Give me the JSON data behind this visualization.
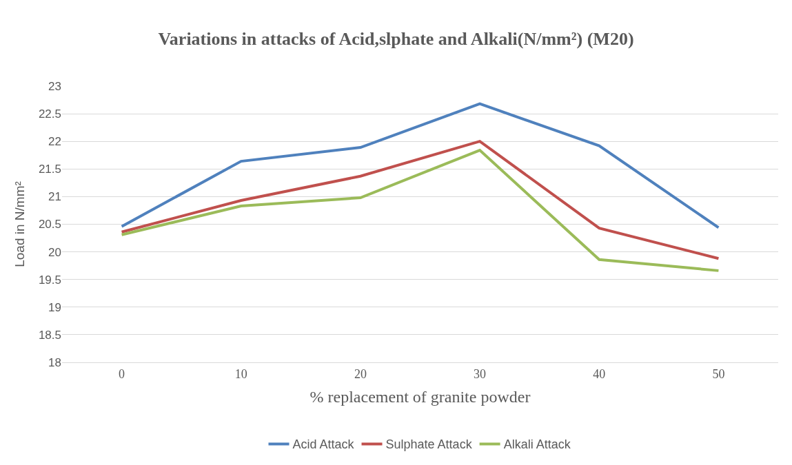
{
  "chart_data": {
    "type": "line",
    "title": "Variations in attacks of Acid,slphate and Alkali(N/mm²) (M20)",
    "xlabel": "% replacement of granite powder",
    "ylabel": "Load in N/mm²",
    "categories": [
      "0",
      "10",
      "20",
      "30",
      "40",
      "50"
    ],
    "series": [
      {
        "name": "Acid Attack",
        "color": "#4f81bd",
        "values": [
          20.46,
          21.64,
          21.89,
          22.68,
          21.92,
          20.44
        ]
      },
      {
        "name": "Sulphate Attack",
        "color": "#c0504d",
        "values": [
          20.36,
          20.93,
          21.37,
          22.0,
          20.43,
          19.88
        ]
      },
      {
        "name": "Alkali Attack",
        "color": "#9bbb59",
        "values": [
          20.31,
          20.83,
          20.98,
          21.84,
          19.86,
          19.66
        ]
      }
    ],
    "ylim": [
      18,
      23
    ],
    "yticks": [
      18,
      18.5,
      19,
      19.5,
      20,
      20.5,
      21,
      21.5,
      22,
      22.5,
      23
    ],
    "grid": "y",
    "legend": "bottom",
    "marker": "none",
    "line_style": "solid"
  }
}
